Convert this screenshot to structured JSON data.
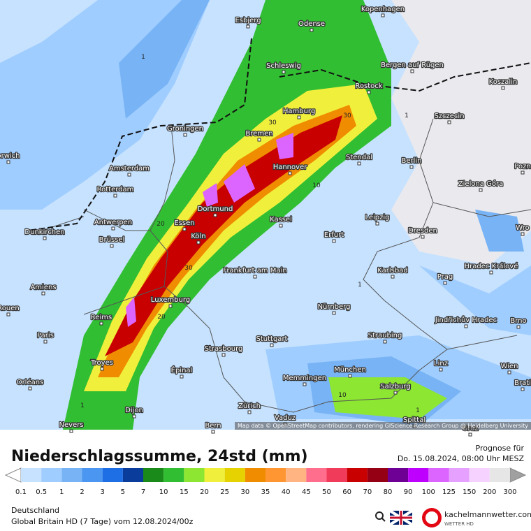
{
  "map": {
    "cities": [
      "Kopenhagen",
      "Esbjerg",
      "Odense",
      "Schleswig",
      "Bergen auf Rügen",
      "Rostock",
      "Koszalin",
      "Hamburg",
      "Szczecin",
      "Groningen",
      "Bremen",
      "Stendal",
      "Berlin",
      "orwich",
      "Amsterdam",
      "Hannover",
      "Pozn",
      "Rotterdam",
      "Zielona Góra",
      "Dortmund",
      "Leipzig",
      "Antwerpen",
      "Essen",
      "Kassel",
      "Wro",
      "Dunkirchen",
      "Erfurt",
      "Dresden",
      "Brüssel",
      "Köln",
      "Frankfurt am Main",
      "Karlsbad",
      "Hradec Králové",
      "Prag",
      "Amiens",
      "Luxemburg",
      "Rouen",
      "Nürnberg",
      "Jindřichův Hradec",
      "Reims",
      "Brno",
      "Paris",
      "Stuttgart",
      "Straubing",
      "Strasbourg",
      "Troyes",
      "Linz",
      "Épinal",
      "München",
      "Wien",
      "Memmingen",
      "Salzburg",
      "Orléans",
      "Brati",
      "Dijon",
      "Zürich",
      "Vaduz",
      "Spittal",
      "Bern",
      "Nevers",
      "Graz"
    ],
    "contour_labels": [
      1,
      30,
      30,
      10,
      20,
      30,
      20,
      1,
      10,
      1,
      1,
      1
    ],
    "attribution": "Map data © OpenStreetMap contributors, rendering GIScience Research Group @ Heidelberg University"
  },
  "header": {
    "title": "Niederschlagssumme, 24std (mm)",
    "forecast_label": "Prognose für",
    "forecast_time": "Do. 15.08.2024, 08:00 Uhr MESZ"
  },
  "legend": {
    "labels": [
      0.1,
      0.5,
      1,
      2,
      3,
      5,
      7,
      10,
      15,
      20,
      25,
      30,
      35,
      40,
      45,
      50,
      60,
      70,
      80,
      90,
      100,
      125,
      150,
      200,
      300
    ],
    "colors": [
      "#c6e2ff",
      "#a0cdff",
      "#78b4f5",
      "#4b96f0",
      "#1e6ee6",
      "#0a3c9b",
      "#1a8a1a",
      "#32be32",
      "#8ce632",
      "#f0f03c",
      "#e6d200",
      "#f08c00",
      "#ff9632",
      "#ffb482",
      "#ff6e8c",
      "#f03c5a",
      "#c80000",
      "#960014",
      "#6e0096",
      "#be00ff",
      "#dc64ff",
      "#e6a0ff",
      "#f5d2ff",
      "#e6e6e6"
    ],
    "below_color": "#ffffff",
    "above_color": "#a0a0a0"
  },
  "footer": {
    "region": "Deutschland",
    "model": "Global Britain HD (7 Tage) vom 12.08.2024/00z"
  },
  "logo": {
    "site": "kachelmannwetter.com",
    "tagline": "WETTER HD"
  }
}
